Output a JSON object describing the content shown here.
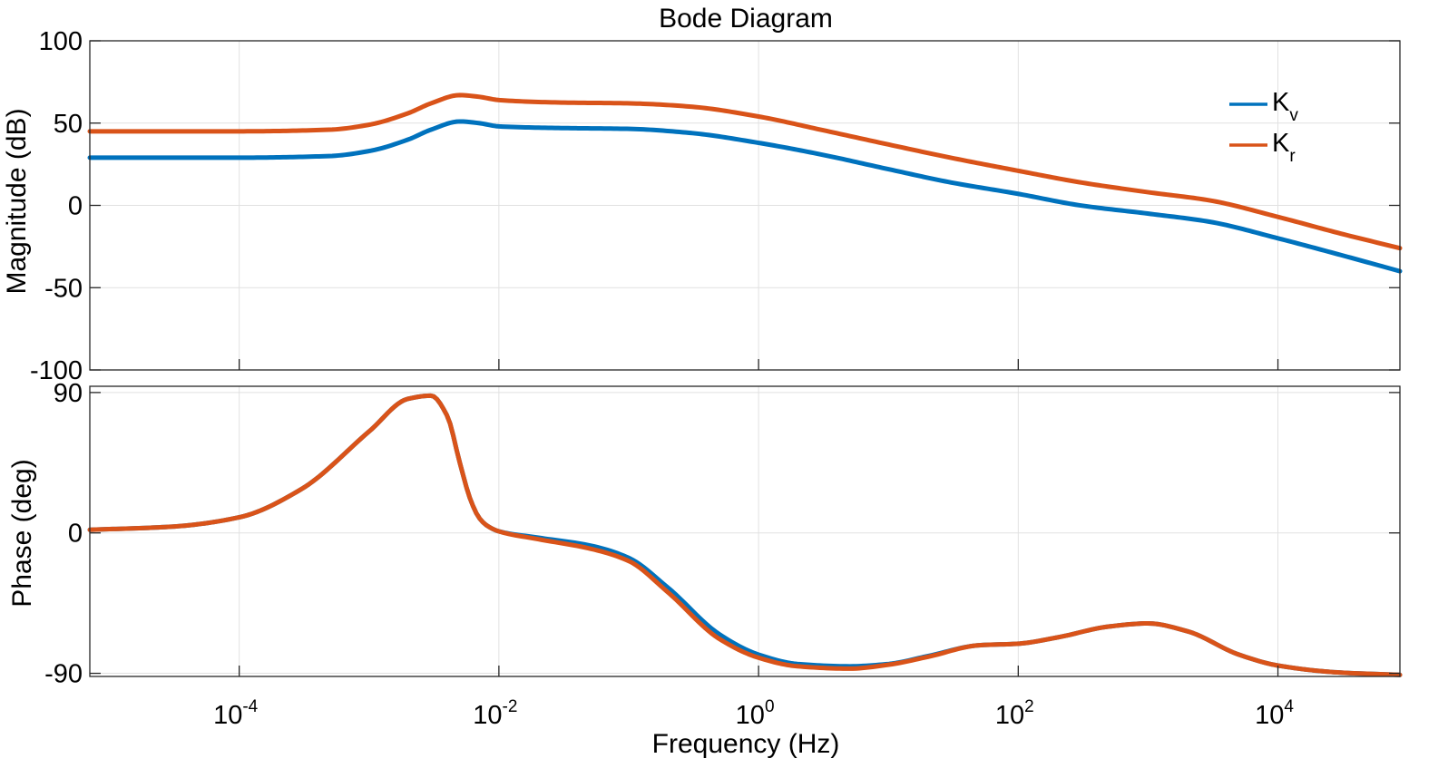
{
  "chart_data": {
    "type": "line",
    "title": "Bode Diagram",
    "xlabel": "Frequency (Hz)",
    "xscale": "log",
    "xlim": [
      7.07e-06,
      87000
    ],
    "x_tick_labels": [
      {
        "value": 0.0001,
        "base": "10",
        "exp": "-4"
      },
      {
        "value": 0.01,
        "base": "10",
        "exp": "-2"
      },
      {
        "value": 1,
        "base": "10",
        "exp": "0"
      },
      {
        "value": 100,
        "base": "10",
        "exp": "2"
      },
      {
        "value": 10000,
        "base": "10",
        "exp": "4"
      }
    ],
    "grid": true,
    "legend_location": "top-right",
    "legend": [
      {
        "base": "K",
        "sub": "v"
      },
      {
        "base": "K",
        "sub": "r"
      }
    ],
    "colors": {
      "Kv": "#0072BD",
      "Kr": "#D95319",
      "grid": "#e1e1e1",
      "axis": "#262626"
    },
    "magnitude": {
      "ylabel": "Magnitude (dB)",
      "ylim": [
        -100,
        100
      ],
      "y_ticks": [
        100,
        50,
        0,
        -50,
        -100
      ],
      "y_tick_labels": [
        "100",
        "50",
        "0",
        "-50",
        "-100"
      ],
      "series": [
        {
          "name": "Kv",
          "x": [
            7.07e-06,
            0.0001,
            0.0005,
            0.001,
            0.002,
            0.003,
            0.005,
            0.007,
            0.01,
            0.03,
            0.1,
            0.3,
            1,
            3,
            10,
            30,
            100,
            300,
            1000,
            3000,
            10000,
            30000,
            87000
          ],
          "y": [
            29,
            29,
            30,
            33,
            40,
            46,
            51,
            50,
            48,
            47,
            46.5,
            44,
            38,
            31,
            22,
            14,
            7,
            0,
            -5,
            -10,
            -20,
            -30,
            -40
          ]
        },
        {
          "name": "Kr",
          "x": [
            7.07e-06,
            0.0001,
            0.0005,
            0.001,
            0.002,
            0.003,
            0.005,
            0.007,
            0.01,
            0.03,
            0.1,
            0.3,
            1,
            3,
            10,
            30,
            100,
            300,
            1000,
            3000,
            10000,
            30000,
            87000
          ],
          "y": [
            45,
            45,
            46,
            49,
            56,
            62,
            67,
            66,
            64,
            62.5,
            62,
            60,
            54,
            46,
            37,
            29,
            21,
            14,
            8,
            3,
            -7,
            -17,
            -26
          ]
        }
      ]
    },
    "phase": {
      "ylabel": "Phase (deg)",
      "ylim": [
        -92,
        94
      ],
      "y_ticks": [
        90,
        0,
        -90
      ],
      "y_tick_labels": [
        "90",
        "0",
        "-90"
      ],
      "series": [
        {
          "name": "Kv",
          "x": [
            7.07e-06,
            3e-05,
            0.0001,
            0.0003,
            0.001,
            0.002,
            0.003,
            0.004,
            0.005,
            0.006,
            0.007,
            0.008,
            0.01,
            0.02,
            0.05,
            0.1,
            0.2,
            0.5,
            1,
            2,
            5,
            10,
            20,
            50,
            100,
            200,
            500,
            1000,
            2000,
            5000,
            10000,
            30000,
            87000
          ],
          "y": [
            2,
            4,
            10,
            28,
            65,
            86,
            88,
            75,
            45,
            22,
            10,
            5,
            1,
            -3,
            -8,
            -16,
            -35,
            -65,
            -78,
            -84,
            -85.5,
            -84,
            -79,
            -72,
            -71,
            -67,
            -60,
            -58,
            -63,
            -78,
            -85,
            -89.5,
            -91
          ]
        },
        {
          "name": "Kr",
          "x": [
            7.07e-06,
            3e-05,
            0.0001,
            0.0003,
            0.001,
            0.002,
            0.003,
            0.004,
            0.005,
            0.006,
            0.007,
            0.008,
            0.01,
            0.02,
            0.05,
            0.1,
            0.2,
            0.5,
            1,
            2,
            5,
            10,
            20,
            50,
            100,
            200,
            500,
            1000,
            2000,
            5000,
            10000,
            30000,
            87000
          ],
          "y": [
            2,
            4,
            10,
            28,
            65,
            86,
            88,
            75,
            45,
            22,
            10,
            5,
            1,
            -4,
            -10,
            -18,
            -38,
            -68,
            -80,
            -85.5,
            -87,
            -84.5,
            -79.5,
            -72,
            -71,
            -67,
            -60,
            -58,
            -63,
            -78,
            -85,
            -89.5,
            -91
          ]
        }
      ]
    }
  }
}
